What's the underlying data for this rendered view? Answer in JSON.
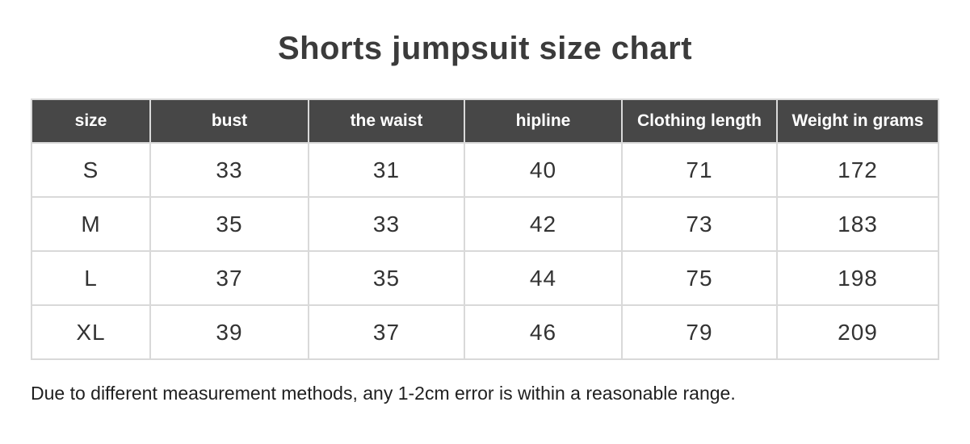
{
  "title": "Shorts jumpsuit size chart",
  "table": {
    "headers": [
      "size",
      "bust",
      "the waist",
      "hipline",
      "Clothing length",
      "Weight in grams"
    ],
    "rows": [
      [
        "S",
        "33",
        "31",
        "40",
        "71",
        "172"
      ],
      [
        "M",
        "35",
        "33",
        "42",
        "73",
        "183"
      ],
      [
        "L",
        "37",
        "35",
        "44",
        "75",
        "198"
      ],
      [
        "XL",
        "39",
        "37",
        "46",
        "79",
        "209"
      ]
    ]
  },
  "footnote": "Due to different measurement methods, any 1-2cm error is within a reasonable range.",
  "colors": {
    "header_background": "#474747",
    "header_text": "#ffffff",
    "body_text": "#333333",
    "border": "#d9d9d9",
    "title_text": "#3b3b3b"
  }
}
